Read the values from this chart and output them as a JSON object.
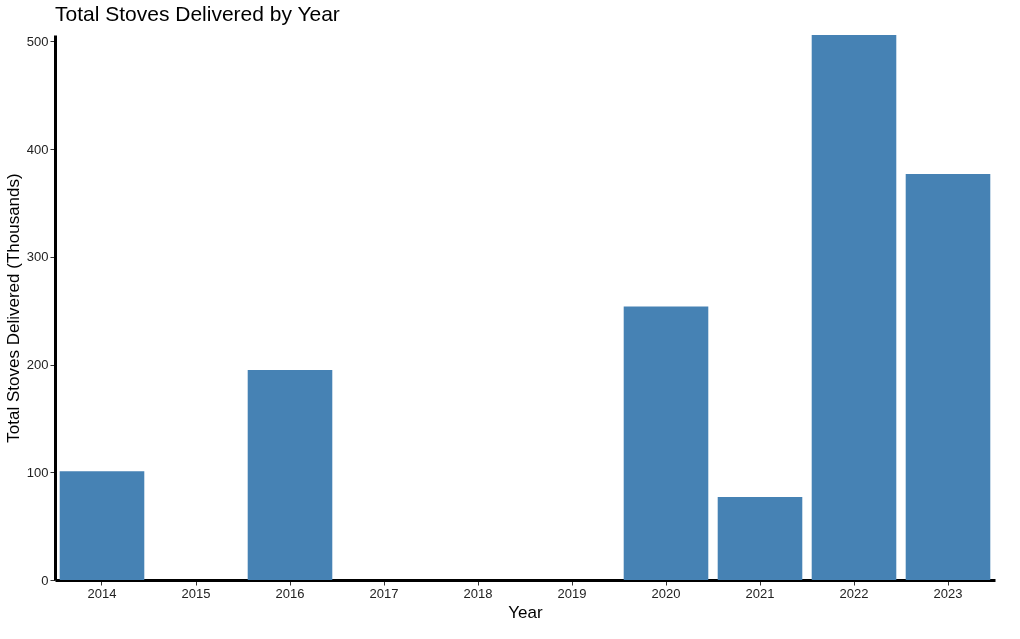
{
  "chart_data": {
    "type": "bar",
    "title": "Total Stoves Delivered by Year",
    "xlabel": "Year",
    "ylabel": "Total Stoves Delivered (Thousands)",
    "categories": [
      "2014",
      "2015",
      "2016",
      "2017",
      "2018",
      "2019",
      "2020",
      "2021",
      "2022",
      "2023"
    ],
    "values": [
      101,
      0,
      195,
      0,
      0,
      0,
      254,
      77,
      506,
      377
    ],
    "color": "#4682b4",
    "ylim": [
      0,
      506
    ],
    "yticks": [
      0,
      100,
      200,
      300,
      400,
      500
    ],
    "grid": false
  }
}
